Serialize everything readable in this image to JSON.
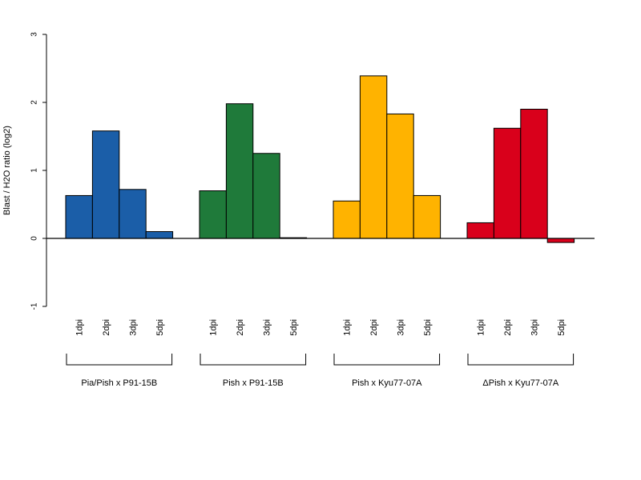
{
  "chart_data": {
    "type": "bar",
    "title": "",
    "xlabel": "",
    "ylabel": "Blast / H2O ratio (log2)",
    "ylim": [
      -1,
      3
    ],
    "yticks": [
      "-1",
      "0",
      "1",
      "2",
      "3"
    ],
    "grid": false,
    "legend": "none",
    "categories": [
      "1dpi",
      "2dpi",
      "3dpi",
      "5dpi"
    ],
    "groups": [
      {
        "name": "Pia/Pish x P91-15B",
        "color": "#1B5EA8",
        "values": [
          0.63,
          1.58,
          0.72,
          0.1
        ]
      },
      {
        "name": "Pish x P91-15B",
        "color": "#1F7A3A",
        "values": [
          0.7,
          1.98,
          1.25,
          0.01
        ]
      },
      {
        "name": "Pish x Kyu77-07A",
        "color": "#FFB300",
        "values": [
          0.55,
          2.39,
          1.83,
          0.63
        ]
      },
      {
        "name": "ΔPish x Kyu77-07A",
        "color": "#D9001B",
        "values": [
          0.23,
          1.62,
          1.9,
          -0.06
        ]
      }
    ]
  }
}
